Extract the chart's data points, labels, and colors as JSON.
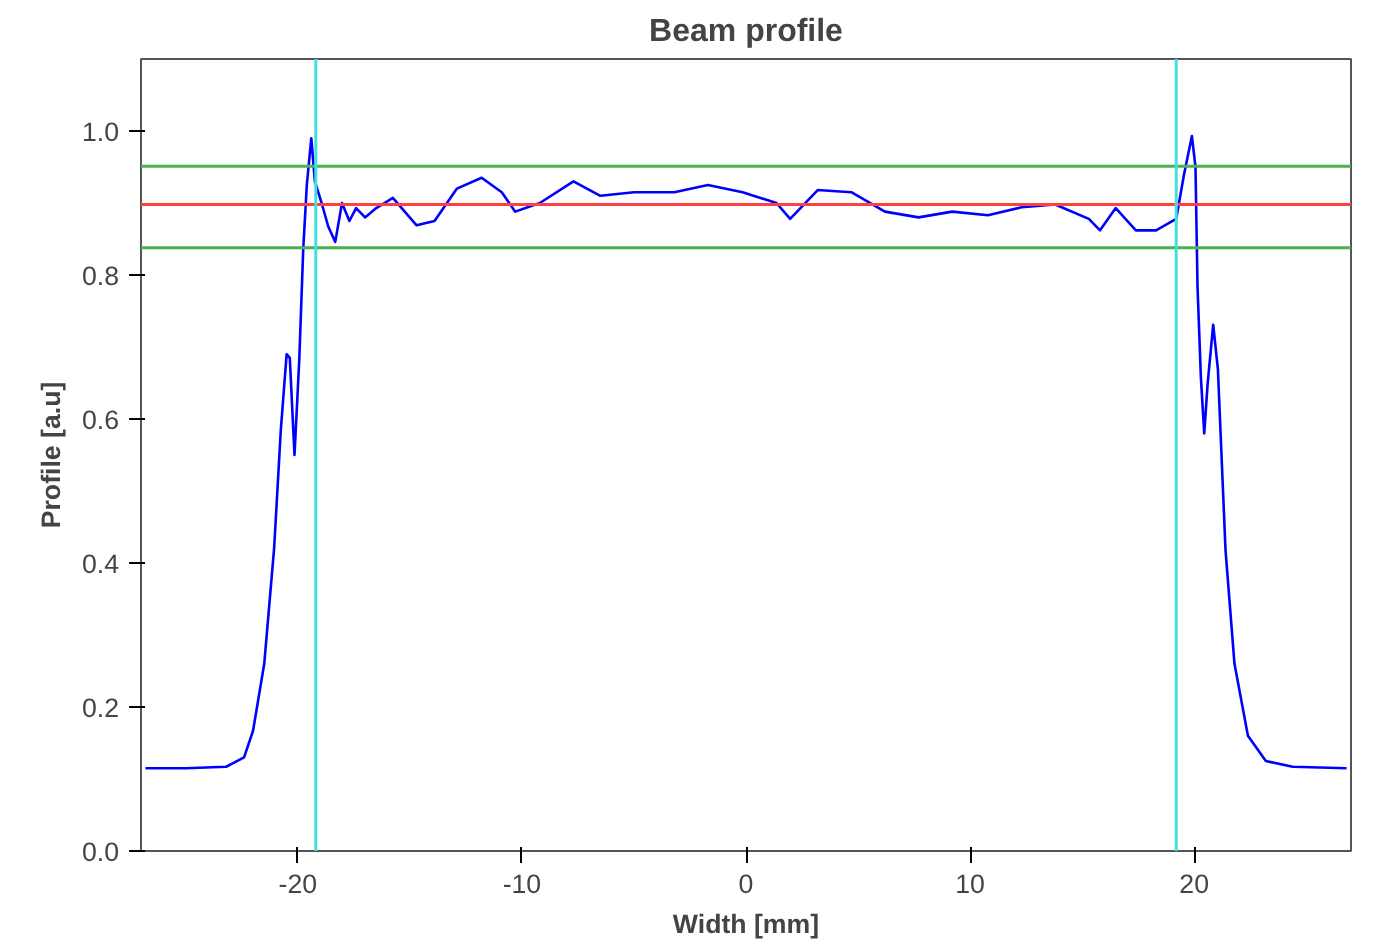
{
  "chart_data": {
    "type": "line",
    "title": "Beam profile",
    "xlabel": "Width [mm]",
    "ylabel": "Profile [a.u]",
    "xlim": [
      -27,
      27
    ],
    "xticks": [
      -20,
      -10,
      0,
      10,
      20
    ],
    "ylim": [
      0,
      1.1
    ],
    "yticks": [
      {
        "value": 0,
        "label": "0.0"
      },
      0.2,
      0.4,
      0.6,
      0.8,
      {
        "value": 1,
        "label": "1.0"
      }
    ],
    "grid": false,
    "marker": "none",
    "line_style": "solid",
    "series": [
      {
        "color": "#0000ff",
        "x": [
          -26.8,
          -25,
          -23.2,
          -22.4,
          -22,
          -21.5,
          -21.06,
          -20.76,
          -20.5,
          -20.36,
          -20.15,
          -19.94,
          -19.76,
          -19.6,
          -19.4,
          -19.24,
          -18.94,
          -18.64,
          -18.33,
          -18.03,
          -17.7,
          -17.4,
          -17.0,
          -16.5,
          -15.76,
          -14.7,
          -13.9,
          -12.9,
          -11.8,
          -10.9,
          -10.3,
          -9.2,
          -7.7,
          -6.5,
          -5,
          -3.2,
          -1.7,
          -0.15,
          1.36,
          1.97,
          3.2,
          4.7,
          6.2,
          7.7,
          9.2,
          10.8,
          12.3,
          13.8,
          15.3,
          15.8,
          16.5,
          17.4,
          18.3,
          19.2,
          19.55,
          19.9,
          20.06,
          20.15,
          20.3,
          20.45,
          20.6,
          20.85,
          21.06,
          21.4,
          21.8,
          22.4,
          23.2,
          24.4,
          26.8
        ],
        "values": [
          0.115,
          0.115,
          0.117,
          0.13,
          0.167,
          0.26,
          0.42,
          0.585,
          0.69,
          0.685,
          0.55,
          0.68,
          0.836,
          0.925,
          0.99,
          0.93,
          0.9,
          0.867,
          0.846,
          0.9,
          0.875,
          0.893,
          0.88,
          0.893,
          0.907,
          0.869,
          0.875,
          0.92,
          0.935,
          0.915,
          0.888,
          0.9,
          0.93,
          0.91,
          0.915,
          0.915,
          0.925,
          0.915,
          0.9,
          0.878,
          0.918,
          0.915,
          0.888,
          0.88,
          0.888,
          0.883,
          0.894,
          0.898,
          0.878,
          0.862,
          0.893,
          0.862,
          0.862,
          0.878,
          0.94,
          0.993,
          0.95,
          0.784,
          0.658,
          0.58,
          0.648,
          0.731,
          0.669,
          0.418,
          0.26,
          0.16,
          0.125,
          0.117,
          0.115
        ]
      }
    ],
    "ref_lines": [
      {
        "axis": "y",
        "value": 0.951,
        "color": "#4caf50"
      },
      {
        "axis": "y",
        "value": 0.898,
        "color": "#ff4040"
      },
      {
        "axis": "y",
        "value": 0.838,
        "color": "#4caf50"
      },
      {
        "axis": "x",
        "value": -19.2,
        "color": "#40e0e0"
      },
      {
        "axis": "x",
        "value": 19.2,
        "color": "#40e0e0"
      }
    ]
  }
}
